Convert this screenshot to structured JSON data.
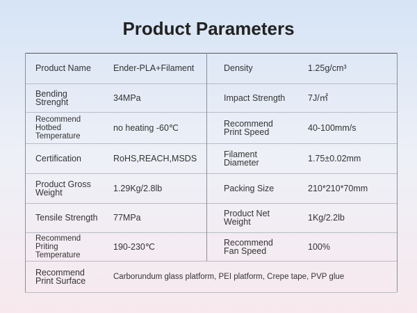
{
  "header": {
    "title": "Product Parameters"
  },
  "table": {
    "rows": [
      [
        [
          "Product Name"
        ],
        [
          "Ender-PLA+Filament"
        ],
        [
          "Density"
        ],
        [
          "1.25g/cm³"
        ]
      ],
      [
        [
          "Bending",
          "Strenght"
        ],
        [
          "34MPa"
        ],
        [
          "Impact Strength"
        ],
        [
          "7J/㎡"
        ]
      ],
      [
        [
          "Recommend",
          "Hotbed",
          "Temperature"
        ],
        [
          "no heating -60℃"
        ],
        [
          "Recommend",
          "Print Speed"
        ],
        [
          "40-100mm/s"
        ]
      ],
      [
        [
          "Certification"
        ],
        [
          "RoHS,REACH,MSDS"
        ],
        [
          "Filament",
          "Diameter"
        ],
        [
          "1.75±0.02mm"
        ]
      ],
      [
        [
          "Product Gross",
          "Weight"
        ],
        [
          "1.29Kg/2.8lb"
        ],
        [
          "Packing Size"
        ],
        [
          "210*210*70mm"
        ]
      ],
      [
        [
          "Tensile Strength"
        ],
        [
          "77MPa"
        ],
        [
          "Product Net",
          "Weight"
        ],
        [
          "1Kg/2.2lb"
        ]
      ],
      [
        [
          "Recommend",
          "Priting",
          "Temperature"
        ],
        [
          "190-230℃"
        ],
        [
          "Recommend",
          "Fan Speed"
        ],
        [
          "100%"
        ]
      ],
      [
        [
          "Recommend",
          "Print Surface"
        ],
        [
          "Carborundum glass platform, PEI platform, Crepe tape, PVP glue"
        ]
      ]
    ]
  }
}
